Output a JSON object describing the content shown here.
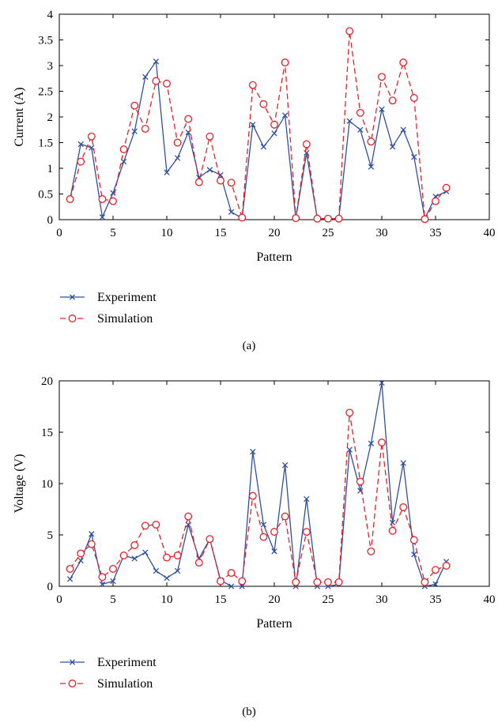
{
  "colors": {
    "experiment": "#2f4fa0",
    "simulation": "#e8202a",
    "axis": "#000000"
  },
  "chart_data": [
    {
      "type": "line",
      "panel_label": "(a)",
      "xlabel": "Pattern",
      "ylabel": "Current (A)",
      "xlim": [
        0,
        40
      ],
      "ylim": [
        0,
        4
      ],
      "xticks": [
        "0",
        "5",
        "10",
        "15",
        "20",
        "25",
        "30",
        "35",
        "40"
      ],
      "yticks": [
        "0",
        "0.5",
        "1",
        "1.5",
        "2",
        "2.5",
        "3",
        "3.5",
        "4"
      ],
      "legend_position": "below",
      "series": [
        {
          "name": "Experiment",
          "marker": "x",
          "style": "solid",
          "x": [
            1,
            2,
            3,
            4,
            5,
            6,
            7,
            8,
            9,
            10,
            11,
            12,
            13,
            14,
            15,
            16,
            17,
            18,
            19,
            20,
            21,
            22,
            23,
            24,
            25,
            26,
            27,
            28,
            29,
            30,
            31,
            32,
            33,
            34,
            35,
            36
          ],
          "y": [
            0.4,
            1.47,
            1.4,
            0.05,
            0.52,
            1.13,
            1.72,
            2.78,
            3.08,
            0.92,
            1.2,
            1.7,
            0.82,
            0.97,
            0.87,
            0.15,
            0.03,
            1.85,
            1.42,
            1.68,
            2.03,
            0.02,
            1.3,
            0.02,
            0.02,
            0.02,
            1.92,
            1.75,
            1.03,
            2.15,
            1.42,
            1.75,
            1.22,
            0.02,
            0.45,
            0.55
          ]
        },
        {
          "name": "Simulation",
          "marker": "o",
          "style": "dashed",
          "x": [
            1,
            2,
            3,
            4,
            5,
            6,
            7,
            8,
            9,
            10,
            11,
            12,
            13,
            14,
            15,
            16,
            17,
            18,
            19,
            20,
            21,
            22,
            23,
            24,
            25,
            26,
            27,
            28,
            29,
            30,
            31,
            32,
            33,
            34,
            35,
            36
          ],
          "y": [
            0.4,
            1.13,
            1.62,
            0.4,
            0.36,
            1.37,
            2.22,
            1.77,
            2.7,
            2.65,
            1.5,
            1.96,
            0.73,
            1.62,
            0.76,
            0.72,
            0.04,
            2.62,
            2.25,
            1.85,
            3.06,
            0.03,
            1.47,
            0.02,
            0.02,
            0.02,
            3.67,
            2.08,
            1.52,
            2.78,
            2.32,
            3.06,
            2.37,
            0.01,
            0.36,
            0.62
          ]
        }
      ]
    },
    {
      "type": "line",
      "panel_label": "(b)",
      "xlabel": "Pattern",
      "ylabel": "Voltage (V)",
      "xlim": [
        0,
        40
      ],
      "ylim": [
        0,
        20
      ],
      "xticks": [
        "0",
        "5",
        "10",
        "15",
        "20",
        "25",
        "30",
        "35",
        "40"
      ],
      "yticks": [
        "0",
        "5",
        "10",
        "15",
        "20"
      ],
      "legend_position": "below",
      "series": [
        {
          "name": "Experiment",
          "marker": "x",
          "style": "solid",
          "x": [
            1,
            2,
            3,
            4,
            5,
            6,
            7,
            8,
            9,
            10,
            11,
            12,
            13,
            14,
            15,
            16,
            17,
            18,
            19,
            20,
            21,
            22,
            23,
            24,
            25,
            26,
            27,
            28,
            29,
            30,
            31,
            32,
            33,
            34,
            35,
            36
          ],
          "y": [
            0.7,
            2.5,
            5.1,
            0.2,
            0.5,
            3.0,
            2.7,
            3.3,
            1.5,
            0.8,
            1.5,
            6.0,
            2.7,
            4.6,
            0.6,
            0.0,
            0.0,
            13.1,
            6.0,
            3.4,
            11.8,
            0.0,
            8.5,
            0.0,
            0.0,
            0.2,
            13.3,
            9.3,
            13.9,
            19.8,
            6.2,
            12.0,
            3.1,
            0.0,
            0.2,
            2.4
          ]
        },
        {
          "name": "Simulation",
          "marker": "o",
          "style": "dashed",
          "x": [
            1,
            2,
            3,
            4,
            5,
            6,
            7,
            8,
            9,
            10,
            11,
            12,
            13,
            14,
            15,
            16,
            17,
            18,
            19,
            20,
            21,
            22,
            23,
            24,
            25,
            26,
            27,
            28,
            29,
            30,
            31,
            32,
            33,
            34,
            35,
            36
          ],
          "y": [
            1.7,
            3.2,
            4.1,
            0.9,
            1.7,
            3.0,
            4.0,
            5.9,
            6.0,
            2.8,
            3.0,
            6.8,
            2.3,
            4.6,
            0.5,
            1.3,
            0.5,
            8.8,
            4.8,
            5.3,
            6.8,
            0.4,
            5.3,
            0.4,
            0.4,
            0.4,
            16.9,
            10.2,
            3.4,
            14.0,
            5.4,
            7.7,
            4.5,
            0.4,
            1.6,
            2.0
          ]
        }
      ]
    }
  ]
}
